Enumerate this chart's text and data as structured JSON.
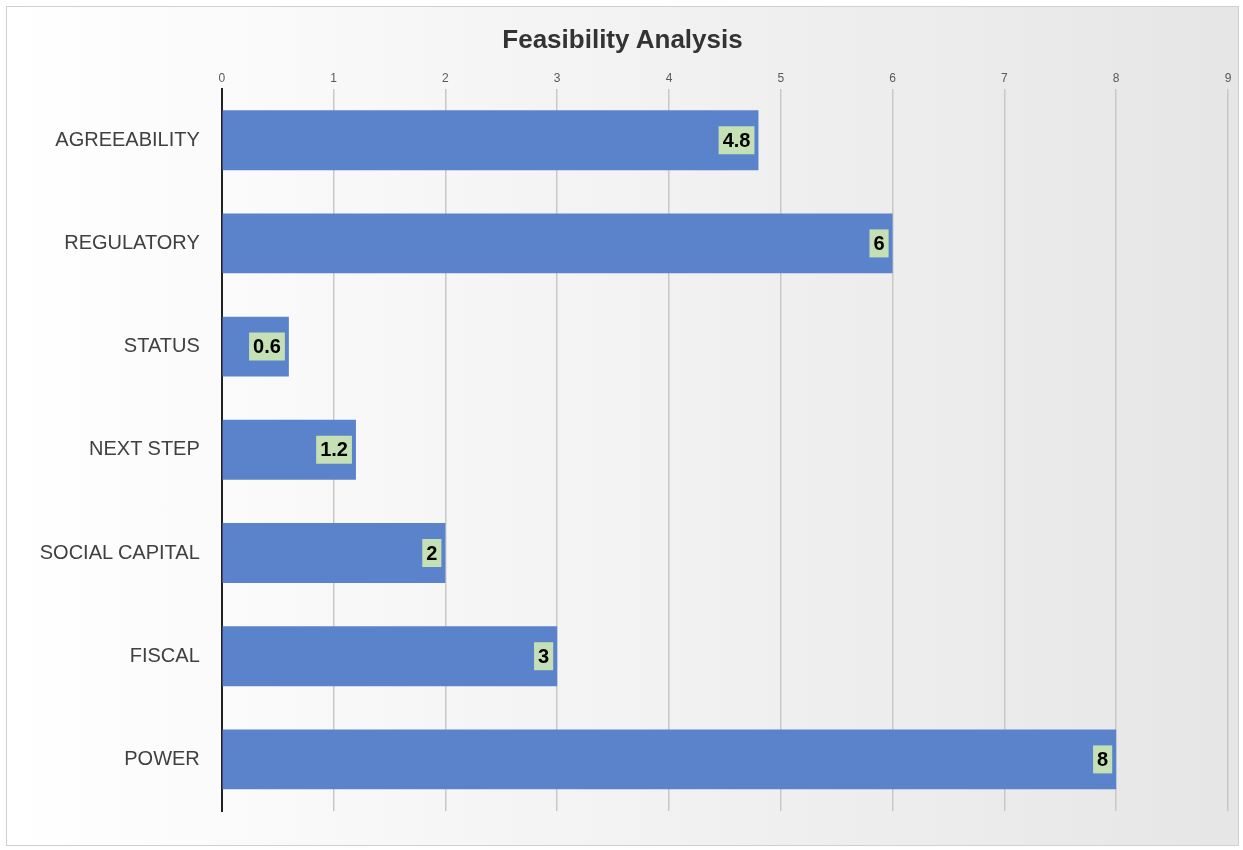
{
  "chart_data": {
    "type": "bar",
    "title": "Feasibility Analysis",
    "orientation": "horizontal",
    "categories": [
      "AGREEABILITY",
      "REGULATORY",
      "STATUS",
      "NEXT STEP",
      "SOCIAL CAPITAL",
      "FISCAL",
      "POWER"
    ],
    "values": [
      4.8,
      6,
      0.6,
      1.2,
      2,
      3,
      8
    ],
    "color": "#5b83cc",
    "xlim": [
      0,
      9
    ],
    "xticks": [
      0,
      1,
      2,
      3,
      4,
      5,
      6,
      7,
      8,
      9
    ],
    "grid": "x",
    "data_labels": true,
    "legend": false
  }
}
